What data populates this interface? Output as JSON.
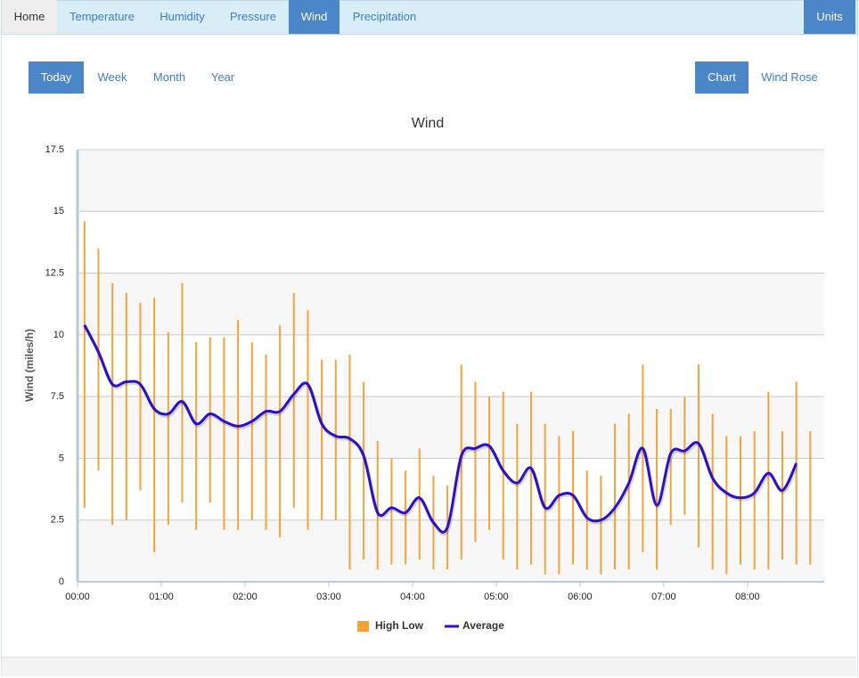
{
  "nav": {
    "items": [
      "Home",
      "Temperature",
      "Humidity",
      "Pressure",
      "Wind",
      "Precipitation"
    ],
    "units": "Units"
  },
  "periods": [
    "Today",
    "Week",
    "Month",
    "Year"
  ],
  "views": [
    "Chart",
    "Wind Rose"
  ],
  "chart_data": {
    "type": "combo",
    "title": "Wind",
    "y_label": "Wind (miles/h)",
    "x": [
      5,
      15,
      25,
      35,
      45,
      55,
      65,
      75,
      85,
      95,
      105,
      115,
      125,
      135,
      145,
      155,
      165,
      175,
      185,
      195,
      205,
      215,
      225,
      235,
      245,
      255,
      265,
      275,
      285,
      295,
      305,
      315,
      325,
      335,
      345,
      355,
      365,
      375,
      385,
      395,
      405,
      415,
      425,
      435,
      445,
      455,
      465,
      475,
      485,
      495,
      505,
      515,
      525
    ],
    "xlim": [
      0,
      535
    ],
    "xticks": [
      {
        "value": 0,
        "label": "00:00"
      },
      {
        "value": 60,
        "label": "01:00"
      },
      {
        "value": 120,
        "label": "02:00"
      },
      {
        "value": 180,
        "label": "03:00"
      },
      {
        "value": 240,
        "label": "04:00"
      },
      {
        "value": 300,
        "label": "05:00"
      },
      {
        "value": 360,
        "label": "06:00"
      },
      {
        "value": 420,
        "label": "07:00"
      },
      {
        "value": 480,
        "label": "08:00"
      }
    ],
    "ylim": [
      0,
      17.5
    ],
    "yticks": [
      0,
      2.5,
      5,
      7.5,
      10,
      12.5,
      15,
      17.5
    ],
    "grid": true,
    "legend": "bottom",
    "series": [
      {
        "name": "High Low",
        "type": "range",
        "color": "#f7a234",
        "high": [
          14.6,
          13.5,
          12.1,
          11.7,
          11.3,
          11.5,
          10.1,
          12.1,
          9.7,
          9.9,
          9.9,
          10.6,
          9.7,
          9.2,
          10.4,
          11.7,
          11.0,
          9.0,
          9.0,
          9.2,
          8.1,
          5.7,
          5.0,
          4.5,
          5.4,
          4.3,
          3.9,
          8.8,
          8.1,
          7.5,
          7.7,
          6.4,
          7.7,
          6.4,
          5.9,
          6.1,
          4.5,
          4.3,
          6.4,
          6.8,
          8.8,
          7.0,
          7.0,
          7.5,
          8.8,
          6.8,
          5.9,
          5.9,
          6.1,
          7.7,
          6.1,
          8.1,
          6.1
        ],
        "low": [
          3.0,
          4.5,
          2.3,
          2.5,
          3.7,
          1.2,
          2.3,
          3.2,
          2.1,
          3.2,
          2.1,
          2.1,
          2.5,
          2.1,
          1.8,
          3.0,
          2.1,
          2.5,
          2.5,
          0.5,
          0.9,
          0.5,
          0.7,
          0.7,
          0.9,
          0.5,
          0.5,
          0.9,
          1.6,
          2.1,
          0.9,
          0.5,
          0.7,
          0.3,
          0.3,
          0.7,
          0.5,
          0.3,
          0.5,
          0.5,
          1.2,
          0.5,
          2.3,
          2.7,
          1.4,
          0.5,
          0.3,
          0.7,
          0.5,
          0.5,
          0.9,
          0.7,
          0.7
        ]
      },
      {
        "name": "Average",
        "type": "line",
        "color": "#2a0fd0",
        "values": [
          10.4,
          9.3,
          8.0,
          8.1,
          8.0,
          7.0,
          6.8,
          7.3,
          6.4,
          6.8,
          6.5,
          6.3,
          6.5,
          6.9,
          6.9,
          7.6,
          8.0,
          6.4,
          5.9,
          5.8,
          5.1,
          2.8,
          3.0,
          2.8,
          3.4,
          2.4,
          2.2,
          5.1,
          5.4,
          5.5,
          4.5,
          4.0,
          4.6,
          3.0,
          3.5,
          3.5,
          2.6,
          2.5,
          3.0,
          4.0,
          5.4,
          3.1,
          5.2,
          5.3,
          5.6,
          4.2,
          3.6,
          3.4,
          3.6,
          4.4,
          3.7,
          4.8,
          null
        ]
      }
    ]
  }
}
